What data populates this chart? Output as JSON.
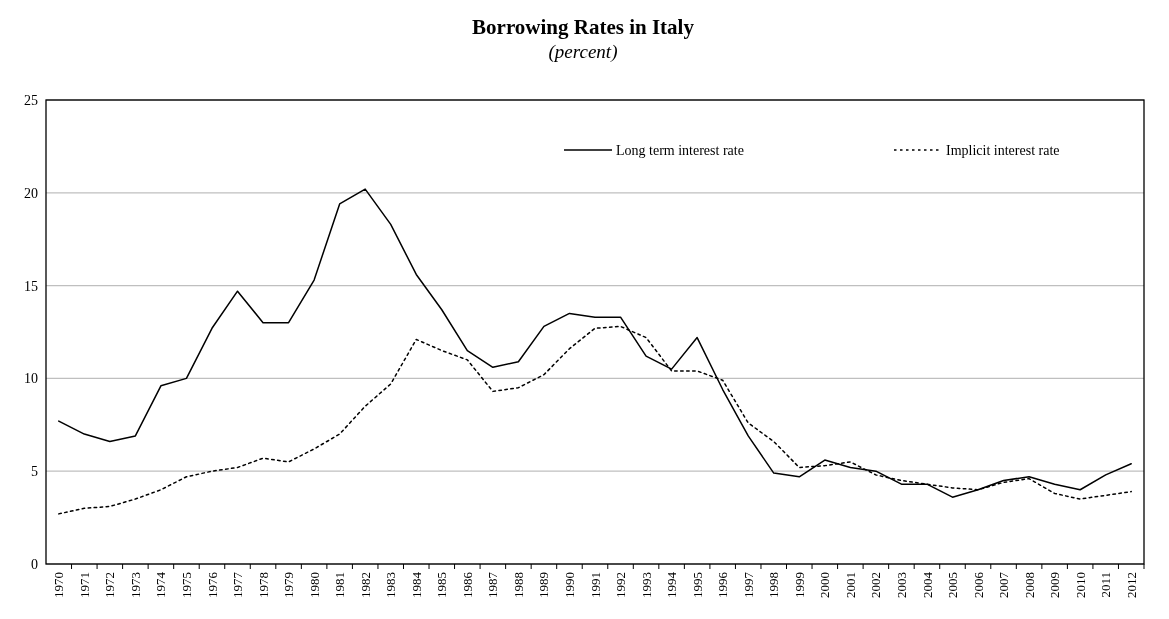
{
  "chart_data": {
    "type": "line",
    "title": "Borrowing Rates in Italy",
    "subtitle": "(percent)",
    "categories": [
      "1970",
      "1971",
      "1972",
      "1973",
      "1974",
      "1975",
      "1976",
      "1977",
      "1978",
      "1979",
      "1980",
      "1981",
      "1982",
      "1983",
      "1984",
      "1985",
      "1986",
      "1987",
      "1988",
      "1989",
      "1990",
      "1991",
      "1992",
      "1993",
      "1994",
      "1995",
      "1996",
      "1997",
      "1998",
      "1999",
      "2000",
      "2001",
      "2002",
      "2003",
      "2004",
      "2005",
      "2006",
      "2007",
      "2008",
      "2009",
      "2010",
      "2011",
      "2012"
    ],
    "series": [
      {
        "name": "Long term interest rate",
        "color": "#000000",
        "line_style": "solid",
        "values": [
          7.7,
          7.0,
          6.6,
          6.9,
          9.6,
          10.0,
          12.7,
          14.7,
          13.0,
          13.0,
          15.3,
          19.4,
          20.2,
          18.3,
          15.6,
          13.7,
          11.5,
          10.6,
          10.9,
          12.8,
          13.5,
          13.3,
          13.3,
          11.2,
          10.5,
          12.2,
          9.4,
          6.9,
          4.9,
          4.7,
          5.6,
          5.2,
          5.0,
          4.3,
          4.3,
          3.6,
          4.0,
          4.5,
          4.7,
          4.3,
          4.0,
          4.8,
          5.4
        ]
      },
      {
        "name": "Implicit interest rate",
        "color": "#000000",
        "line_style": "dotted",
        "values": [
          2.7,
          3.0,
          3.1,
          3.5,
          4.0,
          4.7,
          5.0,
          5.2,
          5.7,
          5.5,
          6.2,
          7.0,
          8.5,
          9.7,
          12.1,
          11.5,
          11.0,
          9.3,
          9.5,
          10.2,
          11.6,
          12.7,
          12.8,
          12.2,
          10.4,
          10.4,
          9.9,
          7.6,
          6.6,
          5.2,
          5.3,
          5.5,
          4.8,
          4.5,
          4.3,
          4.1,
          4.0,
          4.4,
          4.6,
          3.8,
          3.5,
          3.7,
          3.9
        ]
      }
    ],
    "ylim": [
      0,
      25
    ],
    "yticks": [
      0,
      5,
      10,
      15,
      20,
      25
    ],
    "grid": "y",
    "legend": "top right",
    "marker": "none"
  }
}
